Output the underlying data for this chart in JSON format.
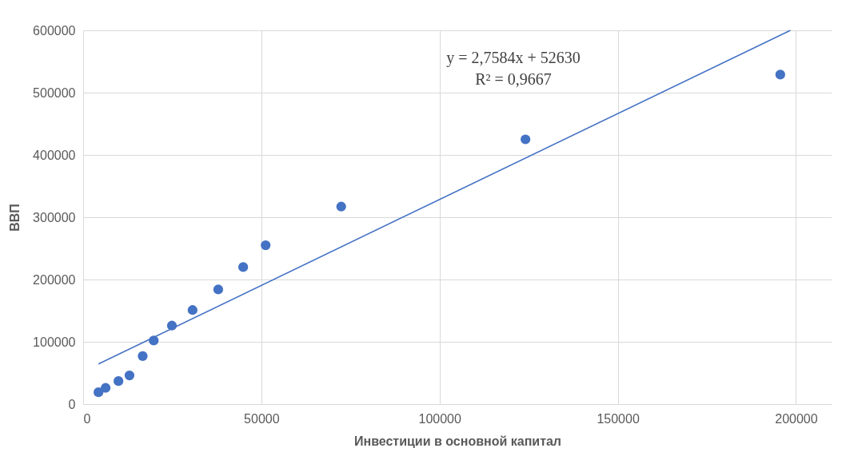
{
  "chart_data": {
    "type": "scatter",
    "xlabel": "Инвестиции в основной капитал",
    "ylabel": "ВВП",
    "xlim": [
      0,
      210000
    ],
    "xticks": [
      0,
      50000,
      100000,
      150000,
      200000
    ],
    "ylim": [
      0,
      600000
    ],
    "yticks": [
      0,
      100000,
      200000,
      300000,
      400000,
      500000,
      600000
    ],
    "grid": true,
    "series": [
      {
        "type": "scatter",
        "marker": "circle",
        "color": "#4472c4",
        "x": [
          4300,
          6300,
          9900,
          13000,
          16700,
          19800,
          24900,
          30700,
          37900,
          44900,
          51200,
          72400,
          124100,
          195600
        ],
        "values": [
          19000,
          26000,
          37000,
          46000,
          77000,
          102000,
          126000,
          151000,
          184000,
          220000,
          255000,
          317000,
          425000,
          529000
        ]
      },
      {
        "type": "line",
        "color": "#4472c4",
        "line_style": "solid",
        "x": [
          4300,
          198440
        ],
        "values": [
          64500,
          600000
        ]
      }
    ],
    "annotations": [
      "y = 2,7584x + 52630",
      "R² = 0,9667"
    ]
  }
}
